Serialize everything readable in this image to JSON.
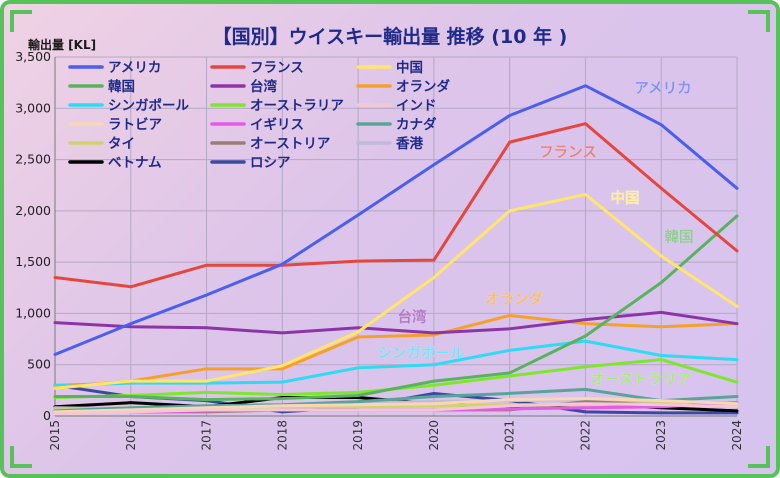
{
  "chart_data": {
    "type": "line",
    "title": "【国別】ウイスキー輸出量 推移 (10 年 )",
    "ylabel": "輸出量 [KL]",
    "xlabel": "",
    "x": [
      "2015",
      "2016",
      "2017",
      "2018",
      "2019",
      "2020",
      "2021",
      "2022",
      "2023",
      "2024"
    ],
    "ylim": [
      0,
      3500
    ],
    "yticks": [
      "0",
      "500",
      "1,000",
      "1,500",
      "2,000",
      "2,500",
      "3,000",
      "3,500"
    ],
    "grid": true,
    "legend_position": "top-left",
    "series": [
      {
        "name": "アメリカ",
        "color": "#4a5ff0",
        "values": [
          600,
          900,
          1180,
          1480,
          1960,
          2450,
          2930,
          3220,
          2840,
          2220
        ]
      },
      {
        "name": "フランス",
        "color": "#e5463d",
        "values": [
          1350,
          1260,
          1470,
          1470,
          1510,
          1520,
          2670,
          2850,
          2220,
          1610
        ]
      },
      {
        "name": "中国",
        "color": "#ffe56b",
        "values": [
          270,
          340,
          340,
          490,
          820,
          1350,
          2000,
          2160,
          1560,
          1070
        ]
      },
      {
        "name": "韓国",
        "color": "#59b35e",
        "values": [
          190,
          190,
          160,
          170,
          200,
          340,
          420,
          780,
          1300,
          1950
        ]
      },
      {
        "name": "台湾",
        "color": "#8b35a8",
        "values": [
          910,
          870,
          860,
          810,
          860,
          810,
          850,
          940,
          1010,
          900
        ]
      },
      {
        "name": "オランダ",
        "color": "#f5a02a",
        "values": [
          280,
          340,
          460,
          460,
          770,
          790,
          980,
          900,
          870,
          900
        ]
      },
      {
        "name": "シンガポール",
        "color": "#2fdaf3",
        "values": [
          300,
          320,
          320,
          330,
          470,
          500,
          640,
          730,
          590,
          550
        ]
      },
      {
        "name": "オーストラリア",
        "color": "#7fe62e",
        "values": [
          180,
          200,
          230,
          210,
          230,
          300,
          390,
          480,
          550,
          330
        ]
      },
      {
        "name": "インド",
        "color": "#f4c7d4",
        "values": [
          20,
          40,
          60,
          60,
          60,
          60,
          100,
          120,
          110,
          90
        ]
      },
      {
        "name": "ラトビア",
        "color": "#f7d8b6",
        "values": [
          40,
          60,
          80,
          100,
          110,
          120,
          160,
          170,
          150,
          120
        ]
      },
      {
        "name": "イギリス",
        "color": "#e55aea",
        "values": [
          30,
          40,
          50,
          60,
          60,
          60,
          70,
          80,
          90,
          130
        ]
      },
      {
        "name": "カナダ",
        "color": "#5aa39a",
        "values": [
          50,
          80,
          100,
          110,
          140,
          190,
          220,
          260,
          150,
          190
        ]
      },
      {
        "name": "タイ",
        "color": "#cfd36e",
        "values": [
          60,
          80,
          70,
          90,
          90,
          100,
          110,
          110,
          120,
          100
        ]
      },
      {
        "name": "オーストリア",
        "color": "#9b7e72",
        "values": [
          30,
          40,
          40,
          60,
          60,
          60,
          60,
          140,
          110,
          90
        ]
      },
      {
        "name": "香港",
        "color": "#c1b9d9",
        "values": [
          80,
          70,
          70,
          110,
          130,
          140,
          150,
          160,
          140,
          130
        ]
      },
      {
        "name": "ベトナム",
        "color": "#000000",
        "values": [
          90,
          130,
          90,
          180,
          180,
          120,
          80,
          120,
          80,
          50
        ]
      },
      {
        "name": "ロシア",
        "color": "#3a4aa0",
        "values": [
          300,
          190,
          150,
          40,
          90,
          220,
          150,
          40,
          30,
          30
        ]
      }
    ],
    "annotations": [
      {
        "text": "アメリカ",
        "series": "アメリカ",
        "color": "#4a5ff0"
      },
      {
        "text": "フランス",
        "series": "フランス",
        "color": "#e5463d"
      },
      {
        "text": "中国",
        "series": "中国",
        "color": "#ffe56b"
      },
      {
        "text": "韓国",
        "series": "韓国",
        "color": "#59b35e"
      },
      {
        "text": "オランダ",
        "series": "オランダ",
        "color": "#f5a02a"
      },
      {
        "text": "台湾",
        "series": "台湾",
        "color": "#8b35a8"
      },
      {
        "text": "シンガポール",
        "series": "シンガポール",
        "color": "#2fdaf3"
      },
      {
        "text": "オーストラリア",
        "series": "オーストラリア",
        "color": "#7fe62e"
      }
    ]
  }
}
